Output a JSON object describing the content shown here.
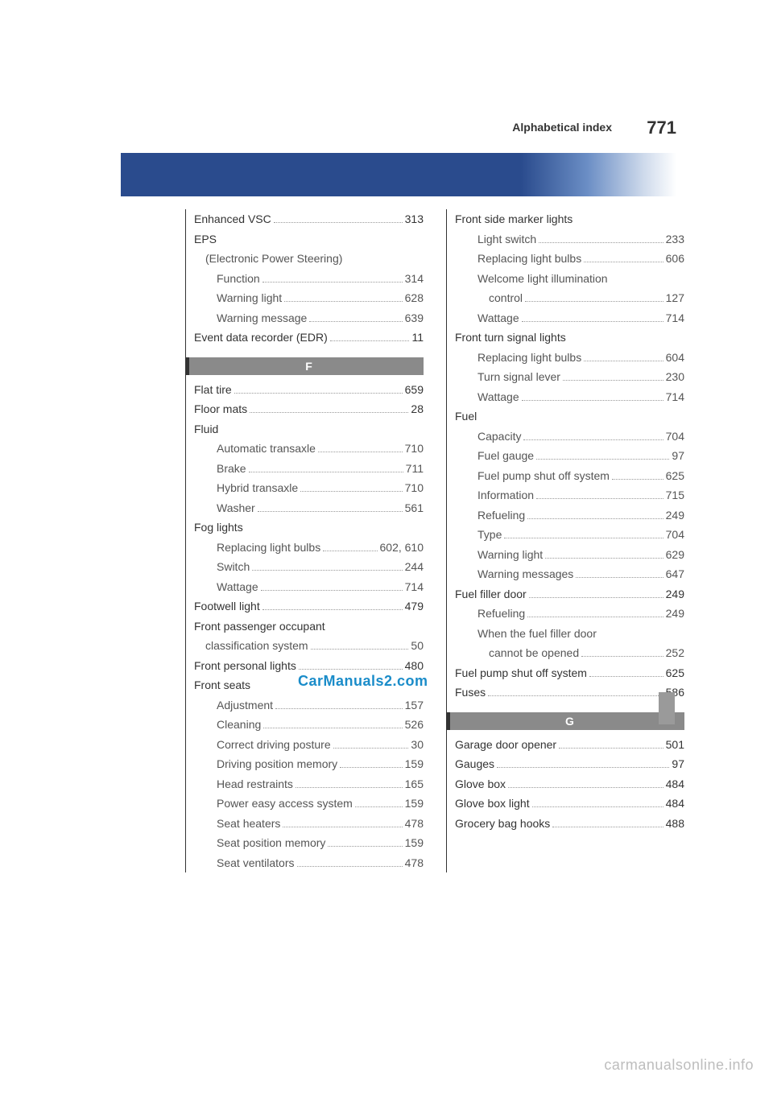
{
  "header": {
    "title": "Alphabetical index",
    "page_number": "771"
  },
  "watermarks": {
    "center": "CarManuals2.com",
    "bottom": "carmanualsonline.info"
  },
  "colors": {
    "band_gradient_from": "#2a4b8d",
    "band_gradient_to": "#ffffff",
    "section_header_bg": "#8a8a8a",
    "section_header_border": "#333333",
    "watermark_center": "#1a8cc9",
    "watermark_bottom": "#bdbdbd"
  },
  "left_column": [
    {
      "type": "entry",
      "level": 0,
      "label": "Enhanced VSC",
      "page": "313"
    },
    {
      "type": "entry",
      "level": 0,
      "label": "EPS",
      "page": ""
    },
    {
      "type": "entry",
      "level": 1,
      "label": "(Electronic Power Steering)",
      "page": ""
    },
    {
      "type": "entry",
      "level": 2,
      "label": "Function",
      "page": "314"
    },
    {
      "type": "entry",
      "level": 2,
      "label": "Warning light",
      "page": "628"
    },
    {
      "type": "entry",
      "level": 2,
      "label": "Warning message",
      "page": "639"
    },
    {
      "type": "entry",
      "level": 0,
      "label": "Event data recorder (EDR)",
      "page": "11"
    },
    {
      "type": "section",
      "label": "F"
    },
    {
      "type": "entry",
      "level": 0,
      "label": "Flat tire",
      "page": "659"
    },
    {
      "type": "entry",
      "level": 0,
      "label": "Floor mats",
      "page": "28"
    },
    {
      "type": "entry",
      "level": 0,
      "label": "Fluid",
      "page": ""
    },
    {
      "type": "entry",
      "level": 2,
      "label": "Automatic transaxle",
      "page": "710"
    },
    {
      "type": "entry",
      "level": 2,
      "label": "Brake",
      "page": "711"
    },
    {
      "type": "entry",
      "level": 2,
      "label": "Hybrid transaxle",
      "page": "710"
    },
    {
      "type": "entry",
      "level": 2,
      "label": "Washer",
      "page": "561"
    },
    {
      "type": "entry",
      "level": 0,
      "label": "Fog lights",
      "page": ""
    },
    {
      "type": "entry",
      "level": 2,
      "label": "Replacing light bulbs",
      "page": "602, 610"
    },
    {
      "type": "entry",
      "level": 2,
      "label": "Switch",
      "page": "244"
    },
    {
      "type": "entry",
      "level": 2,
      "label": "Wattage",
      "page": "714"
    },
    {
      "type": "entry",
      "level": 0,
      "label": "Footwell light",
      "page": "479"
    },
    {
      "type": "entry",
      "level": 0,
      "label": "Front passenger occupant",
      "page": ""
    },
    {
      "type": "entry",
      "level": 1,
      "label": "classification system",
      "page": "50"
    },
    {
      "type": "entry",
      "level": 0,
      "label": "Front personal lights",
      "page": "480"
    },
    {
      "type": "entry",
      "level": 0,
      "label": "Front seats",
      "page": ""
    },
    {
      "type": "entry",
      "level": 2,
      "label": "Adjustment",
      "page": "157"
    },
    {
      "type": "entry",
      "level": 2,
      "label": "Cleaning",
      "page": "526"
    },
    {
      "type": "entry",
      "level": 2,
      "label": "Correct driving posture",
      "page": "30"
    },
    {
      "type": "entry",
      "level": 2,
      "label": "Driving position memory",
      "page": "159"
    },
    {
      "type": "entry",
      "level": 2,
      "label": "Head restraints",
      "page": "165"
    },
    {
      "type": "entry",
      "level": 2,
      "label": "Power easy access system",
      "page": "159"
    },
    {
      "type": "entry",
      "level": 2,
      "label": "Seat heaters",
      "page": "478"
    },
    {
      "type": "entry",
      "level": 2,
      "label": "Seat position memory",
      "page": "159"
    },
    {
      "type": "entry",
      "level": 2,
      "label": "Seat ventilators",
      "page": "478"
    }
  ],
  "right_column": [
    {
      "type": "entry",
      "level": 0,
      "label": "Front side marker lights",
      "page": ""
    },
    {
      "type": "entry",
      "level": 2,
      "label": "Light switch",
      "page": "233"
    },
    {
      "type": "entry",
      "level": 2,
      "label": "Replacing light bulbs",
      "page": "606"
    },
    {
      "type": "entry",
      "level": 2,
      "label": "Welcome light illumination",
      "page": ""
    },
    {
      "type": "entry",
      "level": 3,
      "label": "control",
      "page": "127"
    },
    {
      "type": "entry",
      "level": 2,
      "label": "Wattage",
      "page": "714"
    },
    {
      "type": "entry",
      "level": 0,
      "label": "Front turn signal lights",
      "page": ""
    },
    {
      "type": "entry",
      "level": 2,
      "label": "Replacing light bulbs",
      "page": "604"
    },
    {
      "type": "entry",
      "level": 2,
      "label": "Turn signal lever",
      "page": "230"
    },
    {
      "type": "entry",
      "level": 2,
      "label": "Wattage",
      "page": "714"
    },
    {
      "type": "entry",
      "level": 0,
      "label": "Fuel",
      "page": ""
    },
    {
      "type": "entry",
      "level": 2,
      "label": "Capacity",
      "page": "704"
    },
    {
      "type": "entry",
      "level": 2,
      "label": "Fuel gauge",
      "page": "97"
    },
    {
      "type": "entry",
      "level": 2,
      "label": "Fuel pump shut off system",
      "page": "625"
    },
    {
      "type": "entry",
      "level": 2,
      "label": "Information",
      "page": "715"
    },
    {
      "type": "entry",
      "level": 2,
      "label": "Refueling",
      "page": "249"
    },
    {
      "type": "entry",
      "level": 2,
      "label": "Type",
      "page": "704"
    },
    {
      "type": "entry",
      "level": 2,
      "label": "Warning light",
      "page": "629"
    },
    {
      "type": "entry",
      "level": 2,
      "label": "Warning messages",
      "page": "647"
    },
    {
      "type": "entry",
      "level": 0,
      "label": "Fuel filler door",
      "page": "249"
    },
    {
      "type": "entry",
      "level": 2,
      "label": "Refueling",
      "page": "249"
    },
    {
      "type": "entry",
      "level": 2,
      "label": "When the fuel filler door",
      "page": ""
    },
    {
      "type": "entry",
      "level": 3,
      "label": "cannot be opened",
      "page": "252"
    },
    {
      "type": "entry",
      "level": 0,
      "label": "Fuel pump shut off system",
      "page": "625"
    },
    {
      "type": "entry",
      "level": 0,
      "label": "Fuses",
      "page": "586"
    },
    {
      "type": "section",
      "label": "G"
    },
    {
      "type": "entry",
      "level": 0,
      "label": "Garage door opener",
      "page": "501"
    },
    {
      "type": "entry",
      "level": 0,
      "label": "Gauges",
      "page": "97"
    },
    {
      "type": "entry",
      "level": 0,
      "label": "Glove box",
      "page": "484"
    },
    {
      "type": "entry",
      "level": 0,
      "label": "Glove box light",
      "page": "484"
    },
    {
      "type": "entry",
      "level": 0,
      "label": "Grocery bag hooks",
      "page": "488"
    }
  ]
}
